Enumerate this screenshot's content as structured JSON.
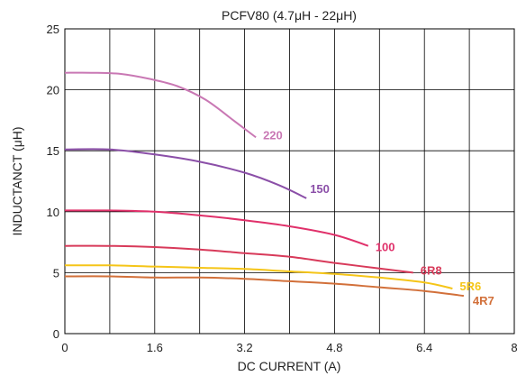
{
  "chart_data": {
    "type": "line",
    "title": "PCFV80 (4.7μH - 22μH)",
    "xlabel": "DC CURRENT (A)",
    "ylabel": "INDUCTANCT (μH)",
    "xlim": [
      0,
      8
    ],
    "ylim": [
      0,
      25
    ],
    "x_ticks": [
      "0",
      "1.6",
      "3.2",
      "4.8",
      "6.4",
      "8"
    ],
    "x_tick_values": [
      0,
      1.6,
      3.2,
      4.8,
      6.4,
      8
    ],
    "y_ticks": [
      "0",
      "5",
      "10",
      "15",
      "20",
      "25"
    ],
    "y_tick_values": [
      0,
      5,
      10,
      15,
      20,
      25
    ],
    "grid": true,
    "legend": "none",
    "series": [
      {
        "name": "220",
        "color": "#c978b4",
        "points": [
          [
            0,
            21.4
          ],
          [
            0.5,
            21.4
          ],
          [
            1.0,
            21.3
          ],
          [
            1.5,
            20.9
          ],
          [
            2.0,
            20.3
          ],
          [
            2.5,
            19.2
          ],
          [
            3.0,
            17.5
          ],
          [
            3.4,
            16.1
          ]
        ]
      },
      {
        "name": "150",
        "color": "#8b4fa8",
        "points": [
          [
            0,
            15.1
          ],
          [
            0.8,
            15.1
          ],
          [
            1.6,
            14.7
          ],
          [
            2.4,
            14.1
          ],
          [
            3.2,
            13.2
          ],
          [
            3.8,
            12.2
          ],
          [
            4.3,
            11.1
          ]
        ]
      },
      {
        "name": "100",
        "color": "#e0306a",
        "points": [
          [
            0,
            10.1
          ],
          [
            0.8,
            10.1
          ],
          [
            1.6,
            10.0
          ],
          [
            2.4,
            9.7
          ],
          [
            3.2,
            9.3
          ],
          [
            4.0,
            8.8
          ],
          [
            4.8,
            8.1
          ],
          [
            5.4,
            7.2
          ]
        ]
      },
      {
        "name": "6R8",
        "color": "#d83a5a",
        "points": [
          [
            0,
            7.2
          ],
          [
            0.8,
            7.2
          ],
          [
            1.6,
            7.1
          ],
          [
            2.4,
            6.9
          ],
          [
            3.2,
            6.6
          ],
          [
            4.0,
            6.3
          ],
          [
            4.8,
            5.8
          ],
          [
            5.5,
            5.4
          ],
          [
            6.2,
            5.0
          ]
        ]
      },
      {
        "name": "5R6",
        "color": "#f5c518",
        "points": [
          [
            0,
            5.6
          ],
          [
            0.8,
            5.6
          ],
          [
            1.6,
            5.5
          ],
          [
            2.4,
            5.4
          ],
          [
            3.2,
            5.3
          ],
          [
            4.0,
            5.1
          ],
          [
            4.8,
            4.9
          ],
          [
            5.6,
            4.6
          ],
          [
            6.4,
            4.2
          ],
          [
            6.9,
            3.7
          ]
        ]
      },
      {
        "name": "4R7",
        "color": "#d2703a",
        "points": [
          [
            0,
            4.7
          ],
          [
            0.8,
            4.7
          ],
          [
            1.6,
            4.6
          ],
          [
            2.4,
            4.6
          ],
          [
            3.2,
            4.5
          ],
          [
            4.0,
            4.3
          ],
          [
            4.8,
            4.1
          ],
          [
            5.6,
            3.8
          ],
          [
            6.4,
            3.5
          ],
          [
            7.1,
            3.1
          ]
        ]
      }
    ]
  }
}
